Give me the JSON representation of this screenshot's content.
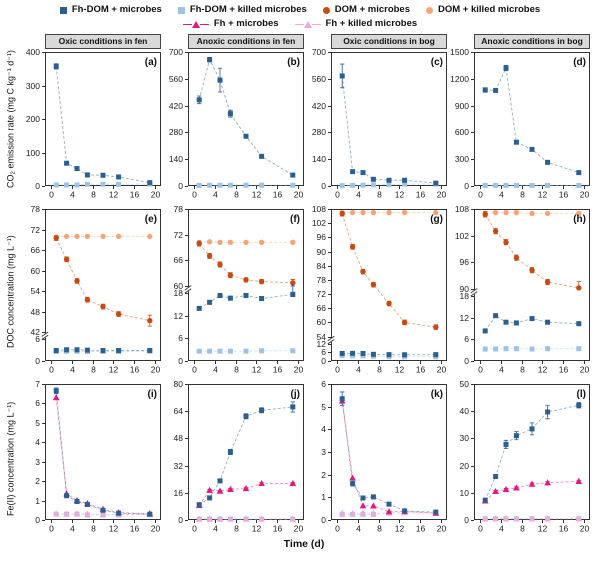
{
  "legend": {
    "entries": {
      "fhdom_microbes": {
        "label": "Fh-DOM + microbes",
        "color": "#2b5f8e",
        "marker": "square"
      },
      "fhdom_killed": {
        "label": "Fh-DOM + killed microbes",
        "color": "#9cc3e5",
        "marker": "square"
      },
      "dom_microbes": {
        "label": "DOM + microbes",
        "color": "#c84a10",
        "marker": "circle"
      },
      "dom_killed": {
        "label": "DOM + killed microbes",
        "color": "#f6a578",
        "marker": "circle"
      },
      "fh_microbes": {
        "label": "Fh + microbes",
        "color": "#e6187f",
        "marker": "triangle"
      },
      "fh_killed": {
        "label": "Fh + killed microbes",
        "color": "#f0a9d8",
        "marker": "triangle"
      }
    }
  },
  "chart_data": {
    "type": "line",
    "xlabel": "Time (d)",
    "x_days": [
      1,
      3,
      5,
      7,
      10,
      13,
      19
    ],
    "xticks": [
      0,
      4,
      8,
      12,
      16,
      20
    ],
    "xlim": [
      0,
      20
    ],
    "rows": [
      {
        "ylabel": "CO₂ emission rate (mg C kg⁻¹ d⁻¹)"
      },
      {
        "ylabel": "DOC concentration (mg L⁻¹)"
      },
      {
        "ylabel": "Fe(II) concentration (mg L⁻¹)"
      }
    ],
    "panels": [
      {
        "id": "a",
        "letter": "(a)",
        "row": 0,
        "header": "Oxic conditions in fen",
        "yticks": [
          0,
          100,
          200,
          300,
          400
        ],
        "segments": [
          {
            "min": 0,
            "max": 400,
            "h": 1
          }
        ],
        "series": [
          {
            "key": "fhdom_killed",
            "y": [
              3,
              3,
              3,
              5,
              5,
              5,
              6
            ]
          },
          {
            "key": "fhdom_microbes",
            "y": [
              357,
              68,
              52,
              33,
              32,
              27,
              10
            ],
            "err": [
              8,
              4,
              3,
              2,
              2,
              2,
              2
            ]
          }
        ]
      },
      {
        "id": "b",
        "letter": "(b)",
        "row": 0,
        "header": "Anoxic conditions in fen",
        "yticks": [
          0,
          140,
          280,
          420,
          560,
          700
        ],
        "segments": [
          {
            "min": 0,
            "max": 700,
            "h": 1
          }
        ],
        "series": [
          {
            "key": "fhdom_killed",
            "y": [
              3,
              4,
              4,
              4,
              4,
              4,
              4
            ]
          },
          {
            "key": "fhdom_microbes",
            "y": [
              450,
              660,
              553,
              378,
              260,
              155,
              57
            ],
            "err": [
              20,
              12,
              62,
              18,
              8,
              6,
              4
            ]
          }
        ]
      },
      {
        "id": "c",
        "letter": "(c)",
        "row": 0,
        "header": "Oxic conditions in bog",
        "yticks": [
          0,
          140,
          280,
          420,
          560,
          700
        ],
        "segments": [
          {
            "min": 0,
            "max": 700,
            "h": 1
          }
        ],
        "series": [
          {
            "key": "fhdom_killed",
            "y": [
              2,
              3,
              4,
              6,
              8,
              10,
              10
            ]
          },
          {
            "key": "fhdom_microbes",
            "y": [
              575,
              75,
              70,
              35,
              30,
              30,
              15
            ],
            "err": [
              62,
              5,
              4,
              3,
              3,
              3,
              3
            ]
          }
        ]
      },
      {
        "id": "d",
        "letter": "(d)",
        "row": 0,
        "header": "Anoxic conditions in bog",
        "yticks": [
          0,
          300,
          600,
          900,
          1200,
          1500
        ],
        "segments": [
          {
            "min": 0,
            "max": 1500,
            "h": 1
          }
        ],
        "series": [
          {
            "key": "fhdom_killed",
            "y": [
              6,
              6,
              6,
              6,
              6,
              6,
              6
            ]
          },
          {
            "key": "fhdom_microbes",
            "y": [
              1075,
              1070,
              1320,
              490,
              410,
              265,
              150
            ],
            "err": [
              25,
              20,
              30,
              15,
              12,
              10,
              8
            ]
          }
        ]
      },
      {
        "id": "e",
        "letter": "(e)",
        "row": 1,
        "header": null,
        "yticks": [
          0,
          6,
          42,
          48,
          54,
          60,
          66,
          72,
          78
        ],
        "segments": [
          {
            "min": 0,
            "max": 6,
            "h": 0.15
          },
          {
            "min": 42,
            "max": 78,
            "h": 0.85
          }
        ],
        "series": [
          {
            "key": "dom_killed",
            "y": [
              69.8,
              70,
              70,
              70,
              70,
              70,
              70
            ]
          },
          {
            "key": "dom_microbes",
            "y": [
              69.5,
              63.3,
              57,
              51.5,
              49.5,
              47.3,
              45.4
            ],
            "err": [
              0.7,
              0.7,
              0.7,
              0.7,
              0.7,
              0.7,
              1.6
            ]
          },
          {
            "key": "fhdom_killed",
            "y": [
              2.6,
              2.7,
              2.7,
              2.6,
              2.6,
              2.6,
              2.7
            ]
          },
          {
            "key": "fhdom_microbes",
            "y": [
              2.9,
              3.1,
              3.1,
              3,
              2.9,
              2.9,
              2.9
            ]
          }
        ]
      },
      {
        "id": "f",
        "letter": "(f)",
        "row": 1,
        "header": null,
        "yticks": [
          0,
          6,
          12,
          18,
          60,
          66,
          72,
          78
        ],
        "segments": [
          {
            "min": 0,
            "max": 18,
            "h": 0.47
          },
          {
            "min": 60,
            "max": 78,
            "h": 0.53
          }
        ],
        "series": [
          {
            "key": "dom_killed",
            "y": [
              70.1,
              70.3,
              70.2,
              70.2,
              70.2,
              70.2,
              70.2
            ]
          },
          {
            "key": "dom_microbes",
            "y": [
              69.9,
              67,
              65,
              62.5,
              61.4,
              61,
              60.7
            ],
            "err": [
              0.6,
              0.6,
              0.6,
              0.6,
              0.5,
              0.5,
              0.8
            ]
          },
          {
            "key": "fhdom_killed",
            "y": [
              2.6,
              2.6,
              2.6,
              2.6,
              2.6,
              2.7,
              2.7
            ]
          },
          {
            "key": "fhdom_microbes",
            "y": [
              13.9,
              15.5,
              17.3,
              16.6,
              17.3,
              16.5,
              17.6
            ],
            "err": [
              0.5,
              0.5,
              0.5,
              0.5,
              0.5,
              0.5,
              0.6
            ]
          }
        ]
      },
      {
        "id": "g",
        "letter": "(g)",
        "row": 1,
        "header": null,
        "yticks": [
          0,
          6,
          12,
          54,
          60,
          66,
          72,
          78,
          84,
          90,
          96,
          102,
          108
        ],
        "segments": [
          {
            "min": 0,
            "max": 12,
            "h": 0.12
          },
          {
            "min": 54,
            "max": 108,
            "h": 0.88
          }
        ],
        "series": [
          {
            "key": "dom_killed",
            "y": [
              106.5,
              106.5,
              106.5,
              106.5,
              106.5,
              106.5,
              106.5
            ]
          },
          {
            "key": "dom_microbes",
            "y": [
              106,
              92,
              81.5,
              76,
              68,
              60,
              58
            ],
            "err": [
              1,
              1,
              1,
              1,
              1,
              1,
              1
            ]
          },
          {
            "key": "fhdom_killed",
            "y": [
              3.7,
              3.6,
              3.6,
              3.3,
              3,
              2.9,
              2.9
            ]
          },
          {
            "key": "fhdom_microbes",
            "y": [
              5.2,
              5.3,
              5.2,
              4.6,
              4.4,
              4.3,
              4.4
            ]
          }
        ]
      },
      {
        "id": "h",
        "letter": "(h)",
        "row": 1,
        "header": null,
        "yticks": [
          0,
          6,
          12,
          18,
          90,
          96,
          102,
          108
        ],
        "segments": [
          {
            "min": 0,
            "max": 18,
            "h": 0.45
          },
          {
            "min": 90,
            "max": 108,
            "h": 0.55
          }
        ],
        "series": [
          {
            "key": "dom_killed",
            "y": [
              107,
              107.2,
              107.2,
              107.2,
              107,
              107,
              107
            ]
          },
          {
            "key": "dom_microbes",
            "y": [
              106.8,
              103,
              100.5,
              97,
              94.2,
              91.5,
              90.2
            ],
            "err": [
              0.6,
              0.6,
              0.6,
              0.6,
              0.6,
              0.6,
              1.4
            ]
          },
          {
            "key": "fhdom_killed",
            "y": [
              3.3,
              3.3,
              3.4,
              3.4,
              3.3,
              3.4,
              3.4
            ]
          },
          {
            "key": "fhdom_microbes",
            "y": [
              8.3,
              12.5,
              10.7,
              10.5,
              11.7,
              10.7,
              10.3
            ],
            "err": [
              0.5,
              0.5,
              0.5,
              0.5,
              0.5,
              0.5,
              0.5
            ]
          }
        ]
      },
      {
        "id": "i",
        "letter": "(i)",
        "row": 2,
        "header": null,
        "yticks": [
          0,
          1,
          2,
          3,
          4,
          5,
          6,
          7
        ],
        "segments": [
          {
            "min": 0,
            "max": 7,
            "h": 1
          }
        ],
        "series": [
          {
            "key": "fhdom_killed",
            "y": [
              0.3,
              0.3,
              0.3,
              0.26,
              0.26,
              0.26,
              0.27
            ]
          },
          {
            "key": "fh_killed",
            "y": [
              0.32,
              0.3,
              0.32,
              0.3,
              0.28,
              0.28,
              0.3
            ]
          },
          {
            "key": "fh_microbes",
            "y": [
              6.3,
              1.35,
              1.0,
              0.85,
              0.55,
              0.38,
              0.32
            ]
          },
          {
            "key": "fhdom_microbes",
            "y": [
              6.65,
              1.25,
              0.95,
              0.8,
              0.5,
              0.35,
              0.3
            ],
            "err": [
              0.15,
              0.05,
              0.05,
              0.05,
              0.04,
              0.04,
              0.04
            ]
          }
        ]
      },
      {
        "id": "j",
        "letter": "(j)",
        "row": 2,
        "header": null,
        "yticks": [
          0,
          16,
          32,
          48,
          64,
          80
        ],
        "segments": [
          {
            "min": 0,
            "max": 80,
            "h": 1
          }
        ],
        "series": [
          {
            "key": "fhdom_killed",
            "y": [
              0.5,
              0.5,
              0.5,
              0.5,
              0.5,
              0.5,
              0.5
            ]
          },
          {
            "key": "fh_killed",
            "y": [
              0.6,
              0.6,
              0.6,
              0.6,
              0.6,
              0.6,
              0.6
            ]
          },
          {
            "key": "fh_microbes",
            "y": [
              8.5,
              17.5,
              17,
              18,
              18.5,
              21.5,
              21.5
            ],
            "err": [
              0.5,
              0.5,
              0.5,
              0.5,
              0.5,
              0.5,
              0.5
            ]
          },
          {
            "key": "fhdom_microbes",
            "y": [
              9,
              13,
              23,
              40,
              61,
              64.5,
              66.5
            ],
            "err": [
              0.8,
              0.8,
              1,
              1.5,
              1.5,
              1.5,
              3
            ]
          }
        ]
      },
      {
        "id": "k",
        "letter": "(k)",
        "row": 2,
        "header": null,
        "yticks": [
          0,
          1,
          2,
          3,
          4,
          5,
          6
        ],
        "segments": [
          {
            "min": 0,
            "max": 6,
            "h": 1
          }
        ],
        "series": [
          {
            "key": "fhdom_killed",
            "y": [
              0.25,
              0.25,
              0.25,
              0.25,
              0.3,
              0.32,
              0.3
            ]
          },
          {
            "key": "fh_killed",
            "y": [
              0.3,
              0.28,
              0.3,
              0.3,
              0.32,
              0.32,
              0.3
            ]
          },
          {
            "key": "fh_microbes",
            "y": [
              5.25,
              1.85,
              0.63,
              0.62,
              0.37,
              0.38,
              0.3
            ]
          },
          {
            "key": "fhdom_microbes",
            "y": [
              5.35,
              1.6,
              0.97,
              1.02,
              0.7,
              0.4,
              0.35
            ],
            "err": [
              0.3,
              0.1,
              0.08,
              0.08,
              0.05,
              0.05,
              0.05
            ]
          }
        ]
      },
      {
        "id": "l",
        "letter": "(l)",
        "row": 2,
        "header": null,
        "yticks": [
          0,
          10,
          20,
          30,
          40,
          50
        ],
        "segments": [
          {
            "min": 0,
            "max": 50,
            "h": 1
          }
        ],
        "series": [
          {
            "key": "fhdom_killed",
            "y": [
              0.4,
              0.4,
              0.4,
              0.4,
              0.4,
              0.4,
              0.4
            ]
          },
          {
            "key": "fh_killed",
            "y": [
              0.5,
              0.5,
              0.5,
              0.5,
              0.5,
              0.5,
              0.5
            ]
          },
          {
            "key": "fh_microbes",
            "y": [
              7,
              10.5,
              11.2,
              11.8,
              13.2,
              13.7,
              14.2
            ],
            "err": [
              0.4,
              0.4,
              0.4,
              0.4,
              0.4,
              0.4,
              0.4
            ]
          },
          {
            "key": "fhdom_microbes",
            "y": [
              7.3,
              16,
              27.8,
              31,
              33.5,
              39.7,
              42.2
            ],
            "err": [
              0.5,
              0.6,
              1.5,
              1.5,
              2.2,
              2.5,
              1
            ]
          }
        ]
      }
    ]
  }
}
